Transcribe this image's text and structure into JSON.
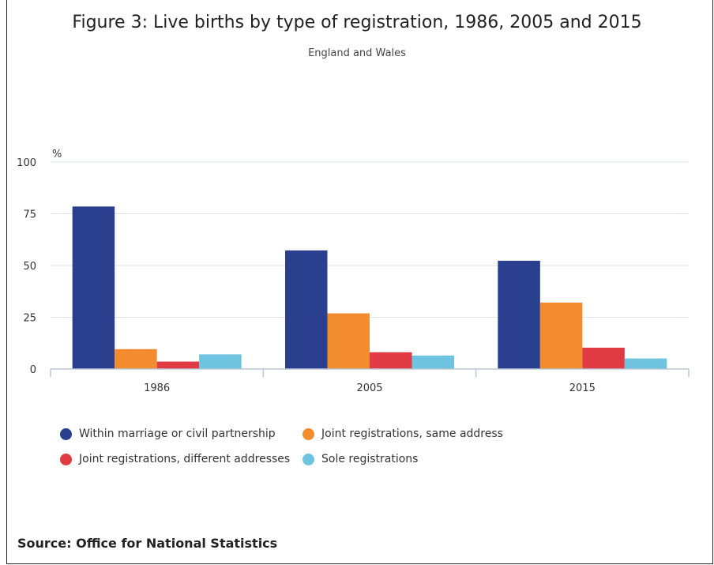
{
  "chart_data": {
    "type": "bar",
    "title": "Figure 3: Live births by type of registration, 1986, 2005 and 2015",
    "subtitle": "England and Wales",
    "ylabel": "%",
    "ylim": [
      0,
      100
    ],
    "yticks": [
      0,
      25,
      50,
      75,
      100
    ],
    "grid": true,
    "legend_position": "bottom-left",
    "categories": [
      "1986",
      "2005",
      "2015"
    ],
    "series": [
      {
        "name": "Within marriage or civil partnership",
        "color": "#2b3f8f",
        "values": [
          78.5,
          57.3,
          52.3
        ]
      },
      {
        "name": "Joint registrations, same address",
        "color": "#f28c2e",
        "values": [
          9.6,
          26.9,
          32.1
        ]
      },
      {
        "name": "Joint registrations, different addresses",
        "color": "#e03a43",
        "values": [
          3.6,
          8.1,
          10.3
        ]
      },
      {
        "name": "Sole registrations",
        "color": "#6ec3de",
        "values": [
          7.1,
          6.5,
          5.1
        ]
      }
    ]
  },
  "source": "Source: Office for National Statistics"
}
